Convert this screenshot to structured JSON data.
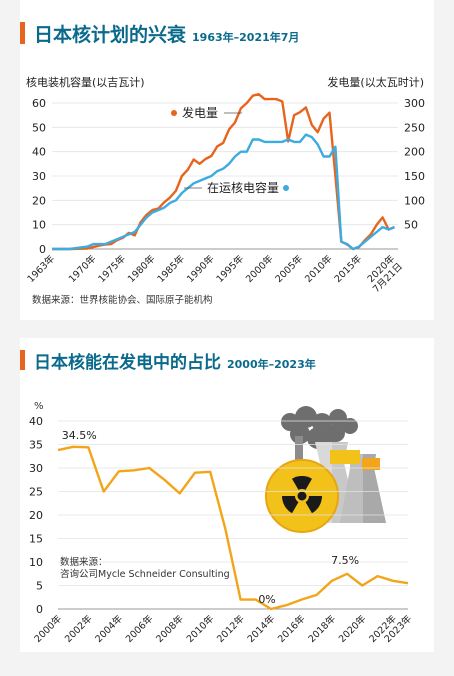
{
  "colors": {
    "generation": "#e8641e",
    "capacity": "#3cabe0",
    "share": "#f2a51a",
    "title": "#0a6a8c",
    "background": "#f3f3f3"
  },
  "chart1_title": {
    "main": "日本核计划的兴衰",
    "sub": "1963年–2021年7月"
  },
  "chart2_title": {
    "main": "日本核能在发电中的占比",
    "sub": "2000年–2023年"
  },
  "chart_data": [
    {
      "type": "line",
      "title": "日本核计划的兴衰 1963年–2021年7月",
      "ylabel": "核电装机容量(以吉瓦计)",
      "y2label": "发电量(以太瓦时计)",
      "ylim": [
        0,
        60
      ],
      "y2lim": [
        0,
        300
      ],
      "y_ticks": [
        0,
        10,
        20,
        30,
        40,
        50,
        60
      ],
      "y2_ticks": [
        50,
        100,
        150,
        200,
        250,
        300
      ],
      "x_ticks": [
        "1963年",
        "1970年",
        "1975年",
        "1980年",
        "1985年",
        "1990年",
        "1995年",
        "2000年",
        "2005年",
        "2010年",
        "2015年",
        "2020年 7月21日"
      ],
      "x_tick_years": [
        1963,
        1970,
        1975,
        1980,
        1985,
        1990,
        1995,
        2000,
        2005,
        2010,
        2015,
        2020.6
      ],
      "source": "数据来源：世界核能协会、国际原子能机构",
      "grid": true,
      "series": [
        {
          "name": "发电量",
          "axis": "right",
          "x": [
            1963,
            1966,
            1969,
            1970,
            1971,
            1972,
            1973,
            1974,
            1975,
            1976,
            1977,
            1978,
            1979,
            1980,
            1981,
            1982,
            1983,
            1984,
            1985,
            1986,
            1987,
            1988,
            1989,
            1990,
            1991,
            1992,
            1993,
            1994,
            1995,
            1996,
            1997,
            1998,
            1999,
            2000,
            2001,
            2002,
            2003,
            2004,
            2005,
            2006,
            2007,
            2008,
            2009,
            2010,
            2011,
            2012,
            2013,
            2014,
            2015,
            2016,
            2017,
            2018,
            2019,
            2020,
            2021
          ],
          "values": [
            0,
            0,
            1,
            4,
            7,
            9,
            10,
            18,
            23,
            33,
            28,
            55,
            70,
            80,
            83,
            96,
            106,
            120,
            150,
            163,
            184,
            175,
            185,
            191,
            211,
            218,
            246,
            260,
            289,
            300,
            315,
            318,
            308,
            308,
            308,
            303,
            221,
            275,
            281,
            291,
            255,
            240,
            268,
            280,
            150,
            15,
            9,
            0,
            4,
            18,
            30,
            50,
            65,
            40,
            45
          ]
        },
        {
          "name": "在运核电容量",
          "axis": "left",
          "x": [
            1963,
            1966,
            1969,
            1970,
            1971,
            1972,
            1973,
            1974,
            1975,
            1976,
            1977,
            1978,
            1979,
            1980,
            1981,
            1982,
            1983,
            1984,
            1985,
            1986,
            1987,
            1988,
            1989,
            1990,
            1991,
            1992,
            1993,
            1994,
            1995,
            1996,
            1997,
            1998,
            1999,
            2000,
            2001,
            2002,
            2003,
            2004,
            2005,
            2006,
            2007,
            2008,
            2009,
            2010,
            2011,
            2012,
            2013,
            2014,
            2015,
            2016,
            2017,
            2018,
            2019,
            2020,
            2021
          ],
          "values": [
            0,
            0,
            1,
            2,
            2,
            2,
            3,
            4,
            5,
            6,
            7,
            10,
            13,
            15,
            16,
            17,
            19,
            20,
            23,
            25,
            27,
            28,
            29,
            30,
            32,
            33,
            35,
            38,
            40,
            40,
            45,
            45,
            44,
            44,
            44,
            44,
            45,
            44,
            44,
            47,
            46,
            43,
            38,
            38,
            42,
            3,
            2,
            0,
            1,
            3,
            5,
            7,
            9,
            8,
            9
          ]
        }
      ],
      "legend_labels": {
        "generation": "发电量",
        "capacity": "在运核电容量"
      }
    },
    {
      "type": "line",
      "title": "日本核能在发电中的占比 2000年–2023年",
      "y_unit_label": "%",
      "ylim": [
        0,
        40
      ],
      "y_ticks": [
        0,
        5,
        10,
        15,
        20,
        25,
        30,
        35,
        40
      ],
      "x": [
        2000,
        2001,
        2002,
        2003,
        2004,
        2005,
        2006,
        2007,
        2008,
        2009,
        2010,
        2011,
        2012,
        2013,
        2014,
        2015,
        2016,
        2017,
        2018,
        2019,
        2020,
        2021,
        2022,
        2023
      ],
      "x_ticks": [
        "2000年",
        "2002年",
        "2004年",
        "2006年",
        "2008年",
        "2010年",
        "2012年",
        "2014年",
        "2016年",
        "2018年",
        "2020年",
        "2022年",
        "2023年"
      ],
      "x_tick_years": [
        2000,
        2002,
        2004,
        2006,
        2008,
        2010,
        2012,
        2014,
        2016,
        2018,
        2020,
        2022,
        2023
      ],
      "series": [
        {
          "name": "",
          "values": [
            33.8,
            34.5,
            34.4,
            25,
            29.3,
            29.5,
            30,
            27.5,
            24.6,
            29,
            29.2,
            17,
            2,
            2,
            0,
            0.8,
            2,
            3,
            6,
            7.5,
            5,
            7,
            6,
            5.5
          ]
        }
      ],
      "annotations": [
        {
          "text": "34.5%",
          "x": 2001,
          "y": 34.5
        },
        {
          "text": "0%",
          "x": 2014,
          "y": 0
        },
        {
          "text": "7.5%",
          "x": 2019,
          "y": 7.5
        }
      ],
      "source_line1": "数据来源：",
      "source_line2": "咨询公司Mycle Schneider Consulting",
      "grid": true
    }
  ]
}
